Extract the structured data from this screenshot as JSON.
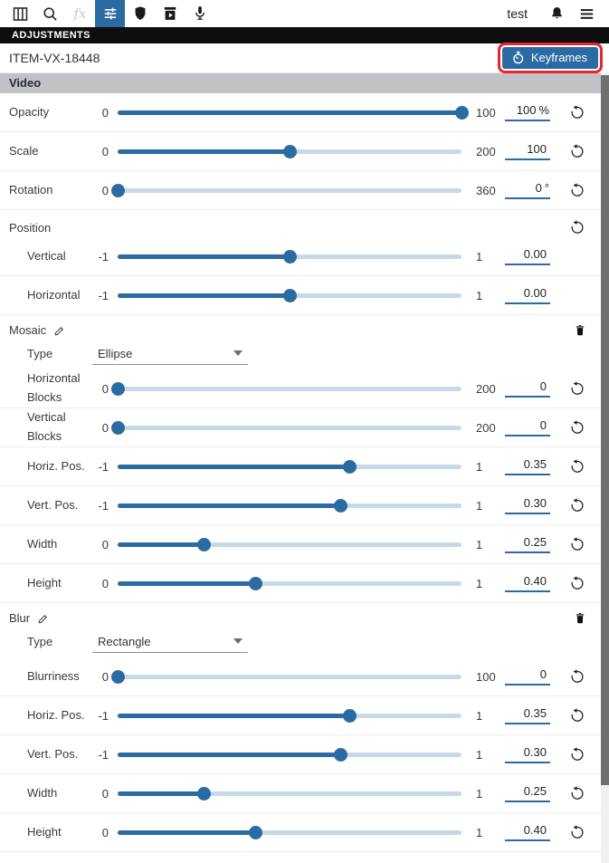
{
  "toolbar": {
    "user_label": "test",
    "icons": [
      {
        "name": "columns-icon"
      },
      {
        "name": "search-icon"
      },
      {
        "name": "effects-fx-icon",
        "glyph": "fx",
        "disabled": true
      },
      {
        "name": "adjustments-sliders-icon",
        "active": true
      },
      {
        "name": "shield-icon"
      },
      {
        "name": "media-export-icon"
      },
      {
        "name": "microphone-icon"
      },
      {
        "name": "notifications-bell-icon"
      },
      {
        "name": "menu-icon"
      }
    ]
  },
  "panel": {
    "title": "ADJUSTMENTS",
    "item_id": "ITEM-VX-18448",
    "keyframes_label": "Keyframes"
  },
  "annotation": {
    "target": "keyframes-button",
    "color": "#e8262c"
  },
  "colors": {
    "accent": "#2b6ba3",
    "slider_track": "#c6d9e8",
    "section_header_bg": "#c2c2c6",
    "title_bar_bg": "#0e0e0e",
    "annotation_red": "#e8262c"
  },
  "groups": [
    {
      "id": "video",
      "header": {
        "style": "bar",
        "label": "Video"
      },
      "rows": [
        {
          "type": "slider",
          "label": "Opacity",
          "min": 0,
          "max": 100,
          "value": 100,
          "display": "100",
          "suffix": "%",
          "reset": true,
          "indent": false
        },
        {
          "type": "slider",
          "label": "Scale",
          "min": 0,
          "max": 200,
          "value": 100,
          "display": "100",
          "suffix": "",
          "reset": true,
          "indent": false
        },
        {
          "type": "slider",
          "label": "Rotation",
          "min": 0,
          "max": 360,
          "value": 0,
          "display": "0",
          "suffix": "°",
          "reset": true,
          "indent": false
        }
      ]
    },
    {
      "id": "position",
      "header": {
        "style": "sub",
        "label": "Position",
        "reset": true
      },
      "rows": [
        {
          "type": "slider",
          "label": "Vertical",
          "min": -1,
          "max": 1,
          "value": 0,
          "display": "0.00",
          "suffix": "",
          "reset": false,
          "indent": true
        },
        {
          "type": "slider",
          "label": "Horizontal",
          "min": -1,
          "max": 1,
          "value": 0,
          "display": "0.00",
          "suffix": "",
          "reset": false,
          "indent": true
        }
      ]
    },
    {
      "id": "mosaic",
      "header": {
        "style": "effect",
        "label": "Mosaic",
        "editable": true,
        "deletable": true
      },
      "rows": [
        {
          "type": "select",
          "label": "Type",
          "value": "Ellipse",
          "indent": true
        },
        {
          "type": "slider",
          "label": "Horizontal Blocks",
          "min": 0,
          "max": 200,
          "value": 0,
          "display": "0",
          "suffix": "",
          "reset": true,
          "indent": true
        },
        {
          "type": "slider",
          "label": "Vertical Blocks",
          "min": 0,
          "max": 200,
          "value": 0,
          "display": "0",
          "suffix": "",
          "reset": true,
          "indent": true
        },
        {
          "type": "slider",
          "label": "Horiz. Pos.",
          "min": -1,
          "max": 1,
          "value": 0.35,
          "display": "0.35",
          "suffix": "",
          "reset": true,
          "indent": true
        },
        {
          "type": "slider",
          "label": "Vert. Pos.",
          "min": -1,
          "max": 1,
          "value": 0.3,
          "display": "0.30",
          "suffix": "",
          "reset": true,
          "indent": true
        },
        {
          "type": "slider",
          "label": "Width",
          "min": 0,
          "max": 1,
          "value": 0.25,
          "display": "0.25",
          "suffix": "",
          "reset": true,
          "indent": true
        },
        {
          "type": "slider",
          "label": "Height",
          "min": 0,
          "max": 1,
          "value": 0.4,
          "display": "0.40",
          "suffix": "",
          "reset": true,
          "indent": true
        }
      ]
    },
    {
      "id": "blur",
      "header": {
        "style": "effect",
        "label": "Blur",
        "editable": true,
        "deletable": true
      },
      "rows": [
        {
          "type": "select",
          "label": "Type",
          "value": "Rectangle",
          "indent": true
        },
        {
          "type": "slider",
          "label": "Blurriness",
          "min": 0,
          "max": 100,
          "value": 0,
          "display": "0",
          "suffix": "",
          "reset": true,
          "indent": true
        },
        {
          "type": "slider",
          "label": "Horiz. Pos.",
          "min": -1,
          "max": 1,
          "value": 0.35,
          "display": "0.35",
          "suffix": "",
          "reset": true,
          "indent": true
        },
        {
          "type": "slider",
          "label": "Vert. Pos.",
          "min": -1,
          "max": 1,
          "value": 0.3,
          "display": "0.30",
          "suffix": "",
          "reset": true,
          "indent": true
        },
        {
          "type": "slider",
          "label": "Width",
          "min": 0,
          "max": 1,
          "value": 0.25,
          "display": "0.25",
          "suffix": "",
          "reset": true,
          "indent": true
        },
        {
          "type": "slider",
          "label": "Height",
          "min": 0,
          "max": 1,
          "value": 0.4,
          "display": "0.40",
          "suffix": "",
          "reset": true,
          "indent": true
        }
      ]
    }
  ]
}
